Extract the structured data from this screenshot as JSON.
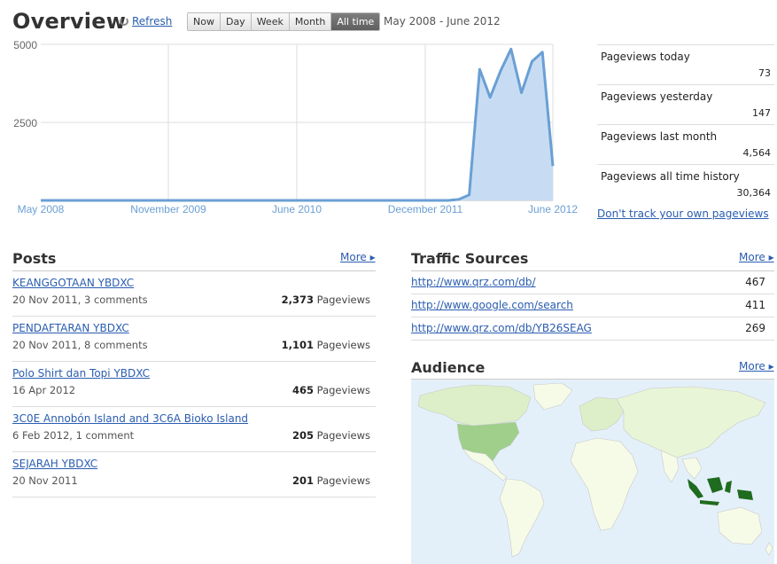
{
  "header": {
    "title": "Overview",
    "refresh_label": "Refresh",
    "range_buttons": [
      "Now",
      "Day",
      "Week",
      "Month",
      "All time"
    ],
    "active_range": "All time",
    "date_range": "May 2008 - June 2012"
  },
  "chart_data": {
    "type": "area",
    "x_tick_labels": [
      "May 2008",
      "November 2009",
      "June 2010",
      "December 2011",
      "June 2012"
    ],
    "y_tick_labels": [
      "5000",
      "2500"
    ],
    "ylim": [
      0,
      5000
    ],
    "grid": true,
    "color": "#6a9fd4",
    "x": [
      "2008-05",
      "2008-06",
      "2008-07",
      "2008-08",
      "2008-09",
      "2008-10",
      "2008-11",
      "2008-12",
      "2009-01",
      "2009-02",
      "2009-03",
      "2009-04",
      "2009-05",
      "2009-06",
      "2009-07",
      "2009-08",
      "2009-09",
      "2009-10",
      "2009-11",
      "2009-12",
      "2010-01",
      "2010-02",
      "2010-03",
      "2010-04",
      "2010-05",
      "2010-06",
      "2010-07",
      "2010-08",
      "2010-09",
      "2010-10",
      "2010-11",
      "2010-12",
      "2011-01",
      "2011-02",
      "2011-03",
      "2011-04",
      "2011-05",
      "2011-06",
      "2011-07",
      "2011-08",
      "2011-09",
      "2011-10",
      "2011-11",
      "2011-12",
      "2012-01",
      "2012-02",
      "2012-03",
      "2012-04",
      "2012-05",
      "2012-06"
    ],
    "values": [
      0,
      0,
      0,
      0,
      0,
      0,
      0,
      0,
      0,
      0,
      0,
      0,
      0,
      0,
      0,
      0,
      0,
      0,
      0,
      0,
      0,
      0,
      0,
      0,
      0,
      0,
      0,
      0,
      0,
      0,
      0,
      0,
      0,
      0,
      0,
      0,
      0,
      0,
      0,
      0,
      30,
      180,
      4200,
      3300,
      4150,
      4850,
      3450,
      4450,
      4750,
      1100
    ]
  },
  "stats": [
    {
      "label": "Pageviews today",
      "value": "73"
    },
    {
      "label": "Pageviews yesterday",
      "value": "147"
    },
    {
      "label": "Pageviews last month",
      "value": "4,564"
    },
    {
      "label": "Pageviews all time history",
      "value": "30,364"
    }
  ],
  "dont_track_label": "Don't track your own pageviews",
  "posts": {
    "title": "Posts",
    "more_label": "More ▸",
    "views_suffix": "Pageviews",
    "items": [
      {
        "title": "KEANGGOTAAN YBDXC",
        "meta": "20 Nov 2011, 3 comments",
        "views": "2,373"
      },
      {
        "title": "PENDAFTARAN YBDXC",
        "meta": "20 Nov 2011, 8 comments",
        "views": "1,101"
      },
      {
        "title": "Polo Shirt dan Topi YBDXC",
        "meta": "16 Apr 2012",
        "views": "465"
      },
      {
        "title": "3C0E Annobón Island and 3C6A Bioko Island",
        "meta": "6 Feb 2012, 1 comment",
        "views": "205"
      },
      {
        "title": "SEJARAH YBDXC",
        "meta": "20 Nov 2011",
        "views": "201"
      }
    ]
  },
  "traffic": {
    "title": "Traffic Sources",
    "more_label": "More ▸",
    "items": [
      {
        "url": "http://www.qrz.com/db/",
        "count": "467"
      },
      {
        "url": "http://www.google.com/search",
        "count": "411"
      },
      {
        "url": "http://www.qrz.com/db/YB26SEAG",
        "count": "269"
      }
    ]
  },
  "audience": {
    "title": "Audience",
    "more_label": "More ▸"
  },
  "colors": {
    "link": "#2a5db0",
    "chart_line": "#6a9fd4",
    "chart_fill": "#c7dcf3",
    "map_ocean": "#e4f0f9",
    "map_land": "#f6fbe8",
    "map_us": "#9fcf8a",
    "map_indonesia": "#1f6b1f"
  }
}
